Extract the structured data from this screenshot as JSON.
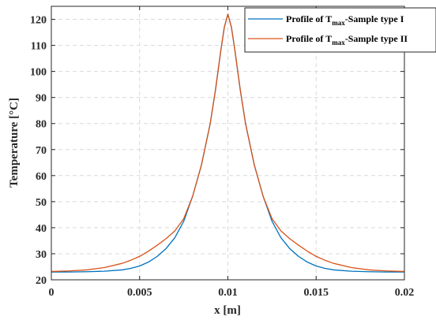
{
  "chart_data": {
    "type": "line",
    "title": "",
    "xlabel": "x [m]",
    "ylabel": "Temperature [°C]",
    "xlim": [
      0,
      0.02
    ],
    "ylim": [
      20,
      125
    ],
    "xticks": [
      0,
      0.005,
      0.01,
      0.015,
      0.02
    ],
    "xtick_labels": [
      "0",
      "0.005",
      "0.01",
      "0.015",
      "0.02"
    ],
    "yticks": [
      20,
      30,
      40,
      50,
      60,
      70,
      80,
      90,
      100,
      110,
      120
    ],
    "ytick_labels": [
      "20",
      "30",
      "40",
      "50",
      "60",
      "70",
      "80",
      "90",
      "100",
      "110",
      "120"
    ],
    "grid": true,
    "legend_position": "top-right",
    "series": [
      {
        "name_prefix": "Profile of T",
        "name_sub": "max",
        "name_suffix": "-Sample type I",
        "color": "#0072BD",
        "x": [
          0,
          0.001,
          0.002,
          0.003,
          0.004,
          0.0045,
          0.005,
          0.0055,
          0.006,
          0.0065,
          0.007,
          0.0075,
          0.008,
          0.0085,
          0.009,
          0.0093,
          0.0096,
          0.0098,
          0.01,
          0.0102,
          0.0104,
          0.0107,
          0.011,
          0.0115,
          0.012,
          0.0125,
          0.013,
          0.0135,
          0.014,
          0.0145,
          0.015,
          0.0155,
          0.016,
          0.017,
          0.018,
          0.019,
          0.02
        ],
        "y": [
          23,
          23,
          23.1,
          23.3,
          23.8,
          24.4,
          25.3,
          26.8,
          29,
          32,
          36.2,
          42.5,
          52,
          64,
          80,
          93,
          108,
          117,
          122,
          117,
          108,
          93,
          80,
          64,
          52,
          42.5,
          36.2,
          32,
          29,
          26.8,
          25.3,
          24.4,
          23.8,
          23.3,
          23.1,
          23,
          23
        ]
      },
      {
        "name_prefix": "Profile of T",
        "name_sub": "max",
        "name_suffix": "-Sample type II",
        "color": "#D95319",
        "x": [
          0,
          0.001,
          0.002,
          0.003,
          0.004,
          0.0045,
          0.005,
          0.0055,
          0.006,
          0.0065,
          0.007,
          0.0075,
          0.008,
          0.0085,
          0.009,
          0.0093,
          0.0096,
          0.0098,
          0.01,
          0.0102,
          0.0104,
          0.0107,
          0.011,
          0.0115,
          0.012,
          0.0125,
          0.013,
          0.0135,
          0.014,
          0.0145,
          0.015,
          0.0155,
          0.016,
          0.017,
          0.018,
          0.019,
          0.02
        ],
        "y": [
          23.2,
          23.4,
          23.8,
          24.7,
          26.3,
          27.5,
          29,
          31,
          33.3,
          35.8,
          38.8,
          43.5,
          52,
          64,
          80,
          93,
          108,
          117,
          122,
          117,
          108,
          93,
          80,
          64,
          52,
          43.5,
          38.8,
          35.8,
          33.3,
          31,
          29,
          27.5,
          26.3,
          24.7,
          23.8,
          23.4,
          23.2
        ]
      }
    ]
  }
}
